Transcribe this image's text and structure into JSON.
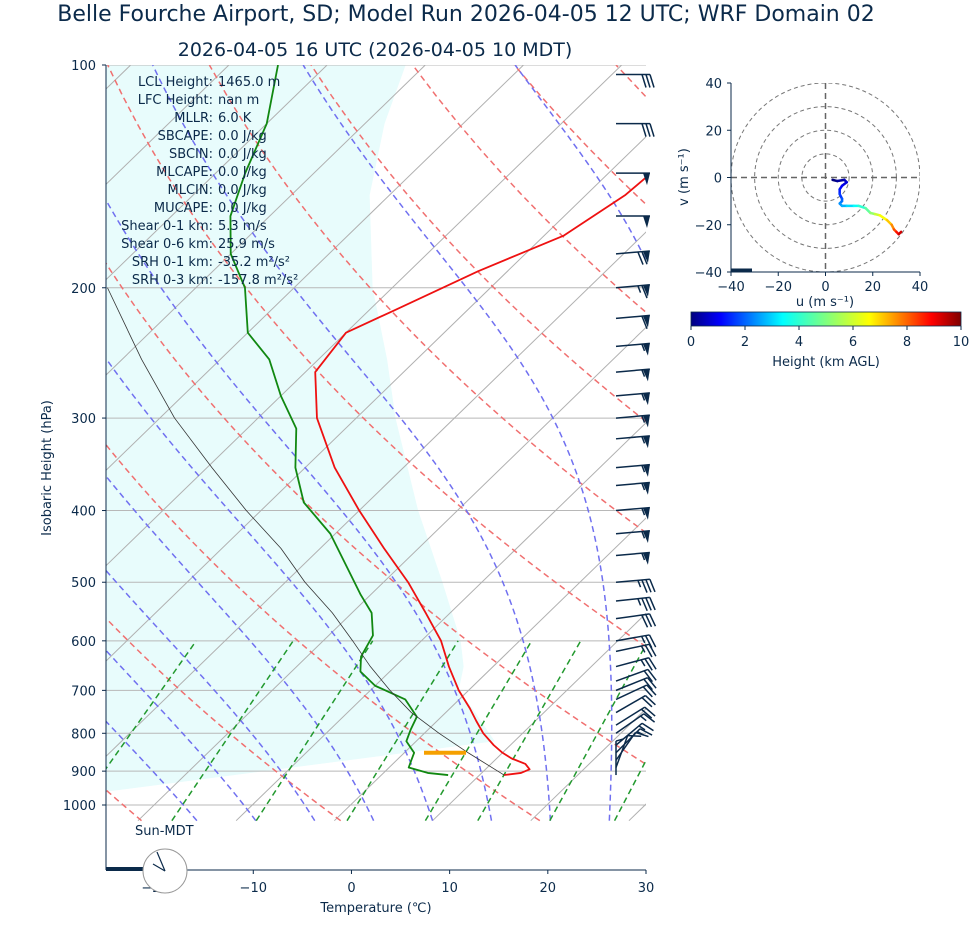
{
  "header": {
    "title": "Belle Fourche Airport, SD; Model Run 2026-04-05 12 UTC; WRF Domain 02",
    "subtitle": "2026-04-05 16 UTC  (2026-04-05 10 MDT)"
  },
  "stats": [
    {
      "label": "LCL Height:",
      "value": "1465.0 m"
    },
    {
      "label": "LFC Height:",
      "value": "nan m"
    },
    {
      "label": "MLLR:",
      "value": "6.0 K"
    },
    {
      "label": "SBCAPE:",
      "value": "0.0 J/kg"
    },
    {
      "label": "SBCIN:",
      "value": "0.0 J/kg"
    },
    {
      "label": "MLCAPE:",
      "value": "0.0 J/kg"
    },
    {
      "label": "MLCIN:",
      "value": "0.0 J/kg"
    },
    {
      "label": "MUCAPE:",
      "value": "0.0 J/kg"
    },
    {
      "label": "Shear 0-1 km:",
      "value": "5.3 m/s"
    },
    {
      "label": "Shear 0-6 km:",
      "value": "25.9 m/s"
    },
    {
      "label": "SRH 0-1 km:",
      "value": "-35.2 m²/s²"
    },
    {
      "label": "SRH 0-3 km:",
      "value": "-157.8 m²/s²"
    }
  ],
  "sun_label": "Sun-MDT",
  "colors": {
    "temperature": "#ee1111",
    "dewpoint": "#118811",
    "parcel": "#333333",
    "dry_adiabat": "#f07070",
    "moist_adiabat": "#7070f0",
    "mixing_ratio": "#22992e",
    "isotherm": "#b0b0b0",
    "cape_fill": "#e8fcfc",
    "lcl_marker": "#f5a000",
    "barb": "#0b2a4a"
  },
  "chart_data": [
    {
      "type": "line",
      "subtype": "skew-t",
      "xlabel": "Temperature (℃)",
      "ylabel": "Isobaric Height (hPa)",
      "x_ticks": [
        -20,
        -10,
        0,
        10,
        20,
        30
      ],
      "x_tick_labels": [
        "−20",
        "−10",
        "0",
        "10",
        "20",
        "30"
      ],
      "y_ticks": [
        100,
        200,
        300,
        400,
        500,
        600,
        700,
        800,
        900,
        1000
      ],
      "xlim": [
        -25,
        30
      ],
      "ylim": [
        1050,
        100
      ],
      "y_scale": "log",
      "grid": true,
      "series": [
        {
          "key": "temperature",
          "p": [
            911,
            905,
            895,
            880,
            865,
            850,
            830,
            800,
            770,
            740,
            700,
            650,
            600,
            550,
            500,
            450,
            400,
            350,
            300,
            260,
            230,
            215,
            190,
            170,
            150,
            135,
            120,
            100
          ],
          "t": [
            12.5,
            14.0,
            14.5,
            13.5,
            11.5,
            10.0,
            8.3,
            6.0,
            4.0,
            2.0,
            -1.0,
            -4.5,
            -8.0,
            -12.5,
            -17.5,
            -23.5,
            -30.0,
            -37.0,
            -44.0,
            -49.0,
            -50.0,
            -47.5,
            -43.0,
            -38.0,
            -36.0,
            -35.5,
            -36.5,
            -40.0
          ]
        },
        {
          "key": "dewpoint",
          "p": [
            911,
            905,
            890,
            870,
            850,
            820,
            790,
            760,
            720,
            690,
            660,
            630,
            590,
            550,
            520,
            480,
            430,
            390,
            350,
            310,
            280,
            250,
            230,
            200,
            180,
            160,
            140,
            120,
            100
          ],
          "t": [
            6.8,
            4.5,
            2.0,
            1.5,
            1.0,
            -1.0,
            -1.8,
            -2.5,
            -5.5,
            -10.0,
            -13.0,
            -14.5,
            -15.5,
            -18.0,
            -21.0,
            -25.0,
            -30.5,
            -36.5,
            -41.0,
            -45.0,
            -50.0,
            -55.0,
            -60.0,
            -65.0,
            -70.0,
            -74.0,
            -77.0,
            -80.0,
            -85.0
          ]
        },
        {
          "key": "parcel",
          "p": [
            911,
            850,
            800,
            750,
            700,
            650,
            600,
            550,
            500,
            450,
            400,
            350,
            300,
            250,
            200
          ],
          "t": [
            12.5,
            6.5,
            1.5,
            -3.5,
            -8.0,
            -12.5,
            -17.0,
            -22.0,
            -28.0,
            -34.0,
            -41.5,
            -49.5,
            -58.5,
            -68.0,
            -79.0
          ]
        }
      ],
      "lcl": {
        "p": 850,
        "t_start": 7.5,
        "t_end": 11.5
      },
      "wind_profile": {
        "p": [
          1030,
          911,
          890,
          870,
          850,
          830,
          800,
          780,
          750,
          720,
          700,
          680,
          650,
          620,
          600,
          560,
          530,
          500,
          460,
          430,
          400,
          370,
          350,
          320,
          300,
          280,
          260,
          240,
          220,
          200,
          180,
          160,
          140,
          120,
          103
        ],
        "speed_kt": [
          0,
          5,
          8,
          10,
          13,
          15,
          17,
          18,
          18,
          18,
          20,
          22,
          24,
          25,
          27,
          30,
          34,
          35,
          55,
          55,
          55,
          55,
          55,
          55,
          55,
          55,
          55,
          55,
          60,
          65,
          70,
          50,
          50,
          30,
          30
        ],
        "dir_deg": [
          0,
          180,
          200,
          215,
          225,
          230,
          235,
          238,
          240,
          245,
          248,
          250,
          255,
          258,
          260,
          262,
          264,
          265,
          265,
          265,
          265,
          265,
          265,
          265,
          265,
          265,
          265,
          265,
          265,
          265,
          265,
          270,
          270,
          270,
          270
        ]
      }
    },
    {
      "type": "line",
      "subtype": "hodograph",
      "xlabel": "u (m s⁻¹)",
      "ylabel": "v (m s⁻¹)",
      "xlim": [
        -40,
        40
      ],
      "ylim": [
        -40,
        40
      ],
      "x_ticks": [
        -40,
        -20,
        0,
        20,
        40
      ],
      "x_tick_labels": [
        "−40",
        "−20",
        "0",
        "20",
        "40"
      ],
      "y_ticks": [
        40,
        20,
        0,
        -20,
        -40
      ],
      "y_tick_labels": [
        "40",
        "20",
        "0",
        "−20",
        "−40"
      ],
      "rings": [
        10,
        20,
        30,
        40
      ],
      "u": [
        3,
        5,
        8,
        9,
        7,
        6,
        6,
        7,
        7,
        6,
        7,
        9,
        12,
        14,
        17,
        19,
        21,
        23,
        26,
        28,
        29,
        30,
        31,
        32
      ],
      "v": [
        -1,
        -1.5,
        -1,
        -2,
        -3.5,
        -5,
        -7,
        -9,
        -10,
        -11,
        -12,
        -12,
        -12,
        -12,
        -13,
        -15,
        -15.5,
        -16,
        -18,
        -20,
        -22,
        -23,
        -24,
        -23
      ],
      "height_km": [
        0,
        0.3,
        0.6,
        0.9,
        1.2,
        1.5,
        1.8,
        2.1,
        2.4,
        2.7,
        3.0,
        3.4,
        3.8,
        4.2,
        4.7,
        5.2,
        5.7,
        6.2,
        6.8,
        7.4,
        8.0,
        8.6,
        9.2,
        10.0
      ]
    },
    {
      "type": "colorbar",
      "label": "Height (km AGL)",
      "range": [
        0,
        10
      ],
      "ticks": [
        0,
        2,
        4,
        6,
        8,
        10
      ],
      "colormap": "jet"
    }
  ]
}
